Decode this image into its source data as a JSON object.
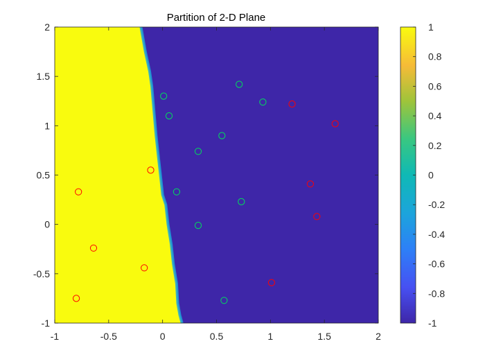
{
  "chart_data": {
    "type": "heatmap",
    "title": "Partition of 2-D Plane",
    "xlabel": "",
    "ylabel": "",
    "xlim": [
      -1,
      2
    ],
    "ylim": [
      -1,
      2
    ],
    "x_ticks": [
      -1,
      -0.5,
      0,
      0.5,
      1,
      1.5,
      2
    ],
    "x_tick_labels": [
      "-1",
      "-0.5",
      "0",
      "0.5",
      "1",
      "1.5",
      "2"
    ],
    "y_ticks": [
      -1,
      -0.5,
      0,
      0.5,
      1,
      1.5,
      2
    ],
    "y_tick_labels": [
      "-1",
      "-0.5",
      "0",
      "0.5",
      "1",
      "1.5",
      "2"
    ],
    "grid": false,
    "colormap": "parula",
    "colors": {
      "class_pos": "#f9fb0e",
      "class_neg": "#3e26a8",
      "marker_red": "#ff0000",
      "marker_green": "#00e05a"
    },
    "colorbar": {
      "range": [
        -1,
        1
      ],
      "ticks": [
        1,
        0.8,
        0.6,
        0.4,
        0.2,
        0,
        -0.2,
        -0.4,
        -0.6,
        -0.8,
        -1
      ],
      "tick_labels": [
        "1",
        "0.8",
        "0.6",
        "0.4",
        "0.2",
        "0",
        "-0.2",
        "-0.4",
        "-0.6",
        "-0.8",
        "-1"
      ]
    },
    "region_values": [
      1,
      -1
    ],
    "decision_boundary": [
      [
        0.18,
        -1.0
      ],
      [
        0.16,
        -0.92
      ],
      [
        0.14,
        -0.8
      ],
      [
        0.13,
        -0.6
      ],
      [
        0.1,
        -0.4
      ],
      [
        0.08,
        -0.2
      ],
      [
        0.05,
        0.0
      ],
      [
        0.03,
        0.2
      ],
      [
        0.0,
        0.3
      ],
      [
        -0.02,
        0.5
      ],
      [
        -0.04,
        0.7
      ],
      [
        -0.06,
        0.9
      ],
      [
        -0.08,
        1.15
      ],
      [
        -0.1,
        1.4
      ],
      [
        -0.12,
        1.55
      ],
      [
        -0.16,
        1.75
      ],
      [
        -0.2,
        2.0
      ]
    ],
    "series": [
      {
        "color": "#ff0000",
        "marker": "circle",
        "x": [
          -0.78,
          -0.64,
          -0.8,
          -0.17,
          -0.11,
          1.01,
          1.2,
          1.6,
          1.37,
          1.43
        ],
        "y": [
          0.33,
          -0.24,
          -0.75,
          -0.44,
          0.55,
          -0.59,
          1.22,
          1.02,
          0.41,
          0.08
        ]
      },
      {
        "color": "#00e05a",
        "marker": "circle",
        "x": [
          0.01,
          0.06,
          0.71,
          0.93,
          0.55,
          0.33,
          0.13,
          0.73,
          0.33,
          0.57
        ],
        "y": [
          1.3,
          1.1,
          1.42,
          1.24,
          0.9,
          0.74,
          0.33,
          0.23,
          -0.01,
          -0.77
        ]
      }
    ]
  }
}
